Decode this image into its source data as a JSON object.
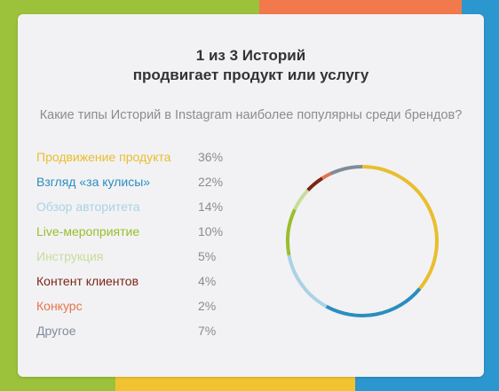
{
  "title_line1": "1 из 3 Историй",
  "title_line2": "продвигает продукт или услугу",
  "question": "Какие типы Историй в Instagram наиболее популярны среди брендов?",
  "chart_data": {
    "type": "pie",
    "categories": [
      "Продвижение продукта",
      "Взгляд «за кулисы»",
      "Обзор авторитета",
      "Live-мероприятие",
      "Инструкция",
      "Контент клиентов",
      "Конкурс",
      "Другое"
    ],
    "values": [
      36,
      22,
      14,
      10,
      5,
      4,
      2,
      7
    ],
    "value_labels": [
      "36%",
      "22%",
      "14%",
      "10%",
      "5%",
      "4%",
      "2%",
      "7%"
    ],
    "colors": [
      "#E9BE2E",
      "#2A8DBF",
      "#A9D2E6",
      "#9BBD2D",
      "#C6DD9A",
      "#7A2517",
      "#E8734A",
      "#7F8C9A"
    ],
    "legend": "left"
  }
}
